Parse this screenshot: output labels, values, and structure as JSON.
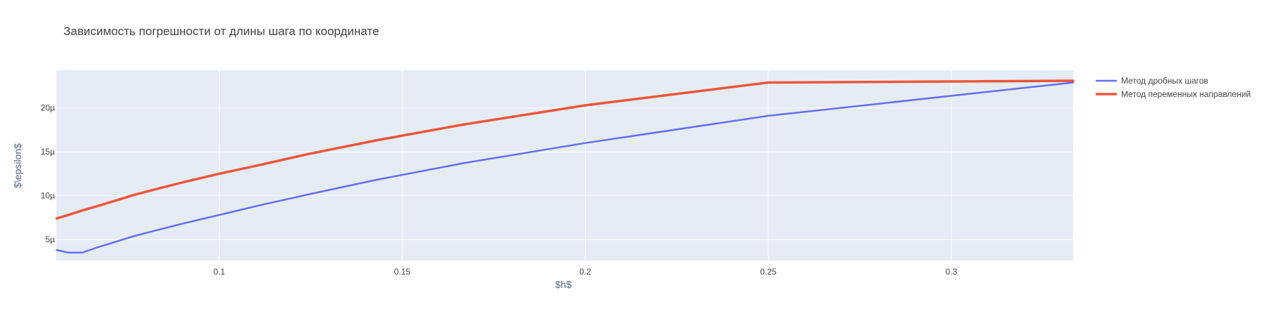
{
  "chart_data": {
    "type": "line",
    "title": "Зависимость погрешности от длины шага по координате",
    "xlabel": "$h$",
    "ylabel": "$\\epsilon$",
    "xlim": [
      0.0555,
      0.3333
    ],
    "ylim": [
      2.6e-06,
      2.43e-05
    ],
    "x_ticks": [
      {
        "value": 0.1,
        "label": "0.1"
      },
      {
        "value": 0.15,
        "label": "0.15"
      },
      {
        "value": 0.2,
        "label": "0.2"
      },
      {
        "value": 0.25,
        "label": "0.25"
      },
      {
        "value": 0.3,
        "label": "0.3"
      }
    ],
    "y_ticks": [
      {
        "value": 5e-06,
        "label": "5µ"
      },
      {
        "value": 1e-05,
        "label": "10µ"
      },
      {
        "value": 1.5e-05,
        "label": "15µ"
      },
      {
        "value": 2e-05,
        "label": "20µ"
      }
    ],
    "grid": true,
    "legend_position": "top-right",
    "colors": {
      "plot_background": "#e5ecf6",
      "grid": "#ffffff"
    },
    "series": [
      {
        "name": "Метод дробных шагов",
        "color": "#636efa",
        "line_width": 2.5,
        "x": [
          0.0556,
          0.0588,
          0.0625,
          0.0667,
          0.0714,
          0.0769,
          0.0833,
          0.0909,
          0.1,
          0.1111,
          0.125,
          0.1429,
          0.1667,
          0.2,
          0.25,
          0.3333
        ],
        "y": [
          3.8e-06,
          3.5e-06,
          3.5e-06,
          4.1e-06,
          4.7e-06,
          5.4e-06,
          6.1e-06,
          6.9e-06,
          7.8e-06,
          8.9e-06,
          1.02e-05,
          1.18e-05,
          1.37e-05,
          1.6e-05,
          1.91e-05,
          2.29e-05
        ]
      },
      {
        "name": "Метод переменных направлений",
        "color": "#ef553b",
        "line_width": 3.5,
        "x": [
          0.0556,
          0.0588,
          0.0625,
          0.0667,
          0.0714,
          0.0769,
          0.0833,
          0.0909,
          0.1,
          0.1111,
          0.125,
          0.1429,
          0.1667,
          0.2,
          0.25,
          0.3333
        ],
        "y": [
          7.4e-06,
          7.8e-06,
          8.3e-06,
          8.8e-06,
          9.4e-06,
          1.01e-05,
          1.08e-05,
          1.16e-05,
          1.25e-05,
          1.35e-05,
          1.48e-05,
          1.63e-05,
          1.81e-05,
          2.03e-05,
          2.29e-05,
          2.31e-05
        ]
      }
    ]
  }
}
